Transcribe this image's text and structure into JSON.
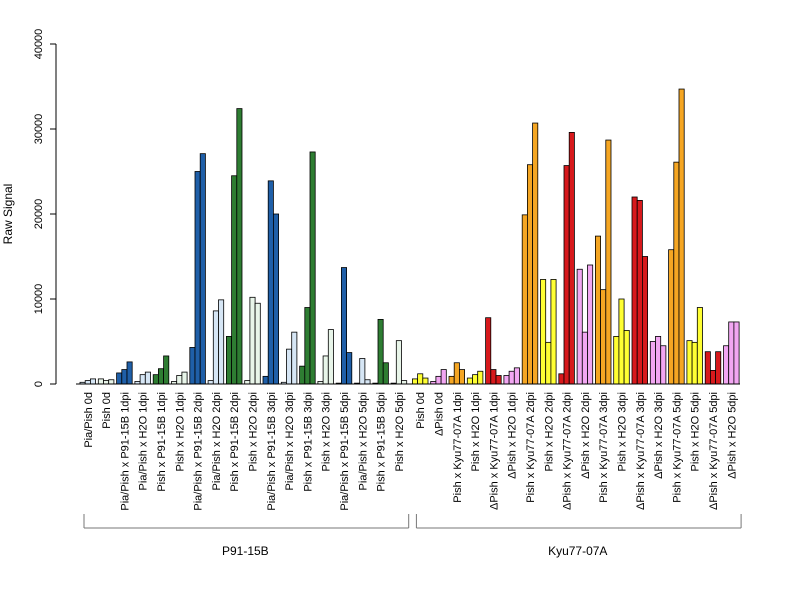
{
  "chart_data": {
    "type": "bar",
    "ylabel": "Raw Signal",
    "ylim": [
      0,
      40000
    ],
    "yticks": [
      0,
      10000,
      20000,
      30000,
      40000
    ],
    "grid": false,
    "legend": "none",
    "colors": {
      "P91-15B": "#1f5fa8",
      "light_blue": "#d6e6f5",
      "green": "#2e7d32",
      "light_green": "#e8f5e9",
      "yellow": "#ffff33",
      "orange": "#f5a623",
      "red": "#d7191c",
      "pink": "#f2a6f2"
    },
    "groups": [
      {
        "label": "P91-15B",
        "categories": [
          {
            "label": "Pia/Pish 0d",
            "color": "#d6e6f5",
            "values": [
              200,
              400,
              600
            ]
          },
          {
            "label": "Pish 0d",
            "color": "#e8f5e9",
            "values": [
              600,
              400,
              500
            ]
          },
          {
            "label": "Pia/Pish x P91-15B 1dpi",
            "color": "#1f5fa8",
            "values": [
              1300,
              1700,
              2600
            ]
          },
          {
            "label": "Pia/Pish x H2O 1dpi",
            "color": "#d6e6f5",
            "values": [
              300,
              1100,
              1400
            ]
          },
          {
            "label": "Pish x P91-15B 1dpi",
            "color": "#2e7d32",
            "values": [
              1100,
              1800,
              3300
            ]
          },
          {
            "label": "Pish x H2O 1dpi",
            "color": "#e8f5e9",
            "values": [
              300,
              1000,
              1400
            ]
          },
          {
            "label": "Pia/Pish x P91-15B 2dpi",
            "color": "#1f5fa8",
            "values": [
              4300,
              25000,
              27100
            ]
          },
          {
            "label": "Pia/Pish x H2O 2dpi",
            "color": "#d6e6f5",
            "values": [
              400,
              8600,
              9900
            ]
          },
          {
            "label": "Pish x P91-15B 2dpi",
            "color": "#2e7d32",
            "values": [
              5600,
              24500,
              32400
            ]
          },
          {
            "label": "Pish x H2O 2dpi",
            "color": "#e8f5e9",
            "values": [
              400,
              10200,
              9500
            ]
          },
          {
            "label": "Pia/Pish x P91-15B 3dpi",
            "color": "#1f5fa8",
            "values": [
              900,
              23900,
              20000
            ]
          },
          {
            "label": "Pia/Pish x H2O 3dpi",
            "color": "#d6e6f5",
            "values": [
              200,
              4100,
              6100
            ]
          },
          {
            "label": "Pish x P91-15B 3dpi",
            "color": "#2e7d32",
            "values": [
              2100,
              9000,
              27300
            ]
          },
          {
            "label": "Pish x H2O 3dpi",
            "color": "#e8f5e9",
            "values": [
              300,
              3300,
              6400
            ]
          },
          {
            "label": "Pia/Pish x P91-15B 5dpi",
            "color": "#1f5fa8",
            "values": [
              100,
              13700,
              3700
            ]
          },
          {
            "label": "Pia/Pish x H2O 5dpi",
            "color": "#d6e6f5",
            "values": [
              100,
              3000,
              500
            ]
          },
          {
            "label": "Pish x P91-15B 5dpi",
            "color": "#2e7d32",
            "values": [
              100,
              7600,
              2500
            ]
          },
          {
            "label": "Pish x H2O 5dpi",
            "color": "#e8f5e9",
            "values": [
              100,
              5100,
              400
            ]
          }
        ]
      },
      {
        "label": "Kyu77-07A",
        "categories": [
          {
            "label": "Pish 0d",
            "color": "#ffff33",
            "values": [
              600,
              1200,
              700
            ]
          },
          {
            "label": "ΔPish 0d",
            "color": "#f2a6f2",
            "values": [
              300,
              900,
              1700
            ]
          },
          {
            "label": "Pish x Kyu77-07A 1dpi",
            "color": "#f5a623",
            "values": [
              900,
              2500,
              1700
            ]
          },
          {
            "label": "Pish x H2O 1dpi",
            "color": "#ffff33",
            "values": [
              700,
              1100,
              1500
            ]
          },
          {
            "label": "ΔPish x Kyu77-07A 1dpi",
            "color": "#d7191c",
            "values": [
              7800,
              1700,
              1000
            ]
          },
          {
            "label": "ΔPish x H2O 1dpi",
            "color": "#f2a6f2",
            "values": [
              1000,
              1500,
              1900
            ]
          },
          {
            "label": "Pish x Kyu77-07A 2dpi",
            "color": "#f5a623",
            "values": [
              19900,
              25800,
              30700
            ]
          },
          {
            "label": "Pish x H2O 2dpi",
            "color": "#ffff33",
            "values": [
              12300,
              4900,
              12300
            ]
          },
          {
            "label": "ΔPish x Kyu77-07A 2dpi",
            "color": "#d7191c",
            "values": [
              1200,
              25700,
              29600
            ]
          },
          {
            "label": "ΔPish x H2O 2dpi",
            "color": "#f2a6f2",
            "values": [
              13500,
              6100,
              14000
            ]
          },
          {
            "label": "Pish x Kyu77-07A 3dpi",
            "color": "#f5a623",
            "values": [
              17400,
              11100,
              28700
            ]
          },
          {
            "label": "Pish x H2O 3dpi",
            "color": "#ffff33",
            "values": [
              5600,
              10000,
              6300
            ]
          },
          {
            "label": "ΔPish x Kyu77-07A 3dpi",
            "color": "#d7191c",
            "values": [
              22000,
              21600,
              15000
            ]
          },
          {
            "label": "ΔPish x H2O 3dpi",
            "color": "#f2a6f2",
            "values": [
              5000,
              5600,
              4500
            ]
          },
          {
            "label": "Pish x Kyu77-07A 5dpi",
            "color": "#f5a623",
            "values": [
              15800,
              26100,
              34700
            ]
          },
          {
            "label": "Pish x H2O 5dpi",
            "color": "#ffff33",
            "values": [
              5100,
              4900,
              9000
            ]
          },
          {
            "label": "ΔPish x Kyu77-07A 5dpi",
            "color": "#d7191c",
            "values": [
              3800,
              1600,
              3800
            ]
          },
          {
            "label": "ΔPish x H2O 5dpi",
            "color": "#f2a6f2",
            "values": [
              4500,
              7300,
              7300
            ]
          }
        ]
      }
    ]
  }
}
